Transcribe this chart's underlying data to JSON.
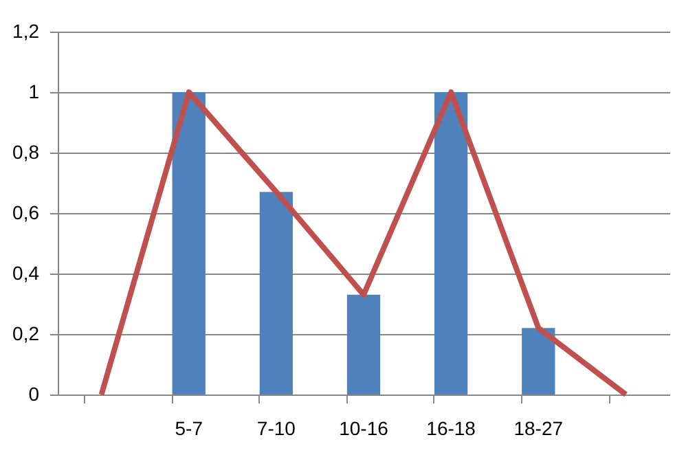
{
  "chart_data": {
    "type": "bar",
    "categories": [
      null,
      "5-7",
      "7-10",
      "10-16",
      "16-18",
      "18-27",
      null
    ],
    "series": [
      {
        "color": "#4f81bd",
        "values": [
          null,
          1,
          0.67,
          0.33,
          1,
          0.22,
          null
        ]
      },
      {
        "type": "line",
        "color": "#c0504d",
        "values": [
          0,
          1,
          0.67,
          0.33,
          1,
          0.22,
          0
        ]
      }
    ],
    "ylim": [
      0,
      1.2
    ],
    "yticks": [
      0,
      {
        "value": 0.2,
        "label": "0,2"
      },
      {
        "value": 0.4,
        "label": "0,4"
      },
      {
        "value": 0.6,
        "label": "0,6"
      },
      {
        "value": 0.8,
        "label": "0,8"
      },
      1,
      {
        "value": 1.2,
        "label": "1,2"
      }
    ],
    "grid": "y",
    "legend": false,
    "marker": "none",
    "line_style": "solid"
  }
}
